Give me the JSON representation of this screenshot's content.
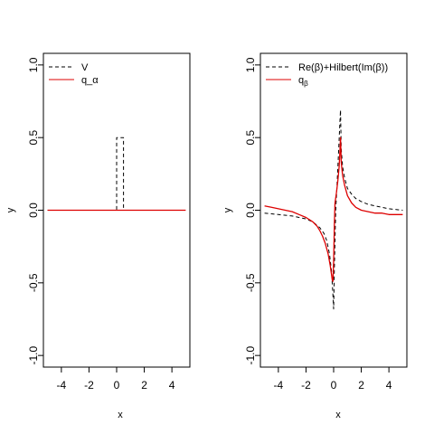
{
  "chart_data": [
    {
      "type": "line",
      "panel": "left",
      "title": "",
      "xlabel": "x",
      "ylabel": "y",
      "xlim": [
        -5.3,
        5.3
      ],
      "ylim": [
        -1.08,
        1.08
      ],
      "xticks": [
        -4,
        -2,
        0,
        2,
        4
      ],
      "xtick_labels": [
        "-4",
        "-2",
        "0",
        "2",
        "4"
      ],
      "yticks": [
        -1.0,
        -0.5,
        0.0,
        0.5,
        1.0
      ],
      "ytick_labels": [
        "-1.0",
        "-0.5",
        "0.0",
        "0.5",
        "1.0"
      ],
      "grid": false,
      "legend_position": "top-left",
      "series": [
        {
          "name": "V",
          "style": "dashed",
          "color": "#000000",
          "x": [
            -5,
            0,
            0,
            0.5,
            0.5,
            5
          ],
          "y": [
            0,
            0,
            0.5,
            0.5,
            0,
            0
          ]
        },
        {
          "name": "q_α",
          "style": "solid",
          "color": "#dd0000",
          "x": [
            -5,
            5
          ],
          "y": [
            0,
            0
          ]
        }
      ]
    },
    {
      "type": "line",
      "panel": "right",
      "title": "",
      "xlabel": "x",
      "ylabel": "y",
      "xlim": [
        -5.3,
        5.3
      ],
      "ylim": [
        -1.08,
        1.08
      ],
      "xticks": [
        -4,
        -2,
        0,
        2,
        4
      ],
      "xtick_labels": [
        "-4",
        "-2",
        "0",
        "2",
        "4"
      ],
      "yticks": [
        -1.0,
        -0.5,
        0.0,
        0.5,
        1.0
      ],
      "ytick_labels": [
        "-1.0",
        "-0.5",
        "0.0",
        "0.5",
        "1.0"
      ],
      "grid": false,
      "legend_position": "top-left",
      "series": [
        {
          "name": "Re(β)+Hilbert(Im(β))",
          "style": "dashed",
          "color": "#000000",
          "x": [
            -5,
            -4,
            -3,
            -2,
            -1.5,
            -1,
            -0.7,
            -0.5,
            -0.3,
            -0.15,
            -0.05,
            0,
            0.05,
            0.15,
            0.25,
            0.35,
            0.45,
            0.5,
            0.55,
            0.65,
            0.8,
            1,
            1.3,
            1.6,
            2,
            2.5,
            3,
            4,
            5
          ],
          "y": [
            -0.02,
            -0.03,
            -0.04,
            -0.06,
            -0.08,
            -0.12,
            -0.16,
            -0.21,
            -0.3,
            -0.42,
            -0.58,
            -0.68,
            -0.4,
            0.0,
            0.18,
            0.38,
            0.6,
            0.69,
            0.42,
            0.3,
            0.22,
            0.15,
            0.11,
            0.08,
            0.06,
            0.04,
            0.03,
            0.01,
            0.0
          ]
        },
        {
          "name": "q_β",
          "label_main": "q",
          "label_sub": "β",
          "style": "solid",
          "color": "#dd0000",
          "x": [
            -5,
            -4.5,
            -4,
            -3.5,
            -3,
            -2.5,
            -2,
            -1.5,
            -1.2,
            -1,
            -0.8,
            -0.6,
            -0.4,
            -0.25,
            -0.1,
            -0.05,
            0,
            0.05,
            0.1,
            0.2,
            0.3,
            0.4,
            0.45,
            0.5,
            0.55,
            0.65,
            0.8,
            1,
            1.3,
            1.6,
            2,
            2.5,
            3,
            3.5,
            4,
            4.5,
            5
          ],
          "y": [
            0.03,
            0.02,
            0.01,
            0.0,
            -0.01,
            -0.03,
            -0.05,
            -0.08,
            -0.11,
            -0.14,
            -0.18,
            -0.23,
            -0.3,
            -0.38,
            -0.48,
            -0.49,
            -0.35,
            -0.1,
            0.05,
            0.12,
            0.2,
            0.3,
            0.4,
            0.5,
            0.33,
            0.24,
            0.17,
            0.1,
            0.05,
            0.02,
            0.0,
            -0.01,
            -0.02,
            -0.02,
            -0.03,
            -0.03,
            -0.03
          ]
        }
      ]
    }
  ]
}
